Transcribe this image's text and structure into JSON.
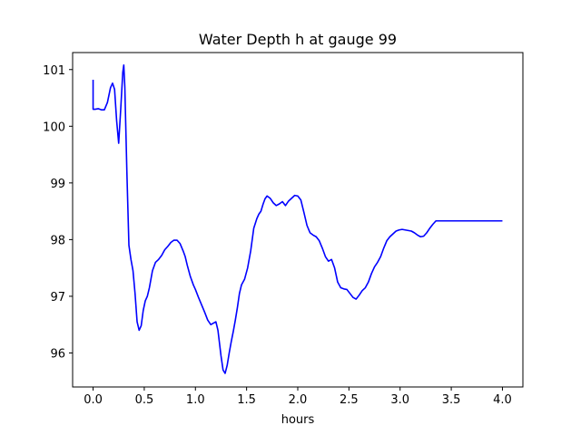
{
  "chart_data": {
    "type": "line",
    "title": "Water Depth h at gauge 99",
    "xlabel": "hours",
    "ylabel": "",
    "xlim": [
      -0.2,
      4.2
    ],
    "ylim": [
      95.4,
      101.3
    ],
    "xticks": [
      0.0,
      0.5,
      1.0,
      1.5,
      2.0,
      2.5,
      3.0,
      3.5,
      4.0
    ],
    "xtick_labels": [
      "0.0",
      "0.5",
      "1.0",
      "1.5",
      "2.0",
      "2.5",
      "3.0",
      "3.5",
      "4.0"
    ],
    "yticks": [
      96,
      97,
      98,
      99,
      100,
      101
    ],
    "ytick_labels": [
      "96",
      "97",
      "98",
      "99",
      "100",
      "101"
    ],
    "grid": false,
    "series": [
      {
        "color": "#0000ff",
        "x": [
          0.0,
          0.0,
          0.02,
          0.05,
          0.08,
          0.11,
          0.14,
          0.17,
          0.19,
          0.21,
          0.23,
          0.25,
          0.27,
          0.29,
          0.3,
          0.31,
          0.33,
          0.35,
          0.37,
          0.39,
          0.41,
          0.43,
          0.45,
          0.47,
          0.49,
          0.51,
          0.53,
          0.55,
          0.58,
          0.61,
          0.64,
          0.67,
          0.7,
          0.73,
          0.76,
          0.79,
          0.82,
          0.85,
          0.88,
          0.9,
          0.92,
          0.95,
          0.98,
          1.0,
          1.03,
          1.06,
          1.09,
          1.12,
          1.15,
          1.18,
          1.2,
          1.22,
          1.25,
          1.27,
          1.29,
          1.31,
          1.33,
          1.35,
          1.37,
          1.39,
          1.41,
          1.43,
          1.45,
          1.48,
          1.51,
          1.54,
          1.57,
          1.6,
          1.62,
          1.64,
          1.66,
          1.68,
          1.7,
          1.73,
          1.76,
          1.79,
          1.82,
          1.85,
          1.88,
          1.91,
          1.94,
          1.97,
          2.0,
          2.03,
          2.06,
          2.09,
          2.12,
          2.15,
          2.18,
          2.21,
          2.24,
          2.27,
          2.3,
          2.33,
          2.36,
          2.39,
          2.42,
          2.45,
          2.48,
          2.51,
          2.54,
          2.57,
          2.6,
          2.63,
          2.66,
          2.69,
          2.72,
          2.75,
          2.78,
          2.81,
          2.84,
          2.87,
          2.9,
          2.93,
          2.96,
          2.99,
          3.02,
          3.05,
          3.08,
          3.11,
          3.14,
          3.17,
          3.2,
          3.23,
          3.26,
          3.29,
          3.32,
          3.35,
          3.38,
          3.41,
          3.44,
          3.47,
          3.5,
          3.53,
          3.56,
          3.59,
          3.62,
          3.65,
          3.68,
          3.71,
          3.74,
          3.77,
          3.8,
          3.83,
          3.86,
          3.89,
          3.92,
          3.95,
          3.98,
          4.0
        ],
        "y": [
          100.82,
          100.3,
          100.3,
          100.31,
          100.29,
          100.29,
          100.42,
          100.68,
          100.76,
          100.65,
          100.1,
          99.7,
          100.3,
          100.95,
          101.08,
          100.7,
          99.2,
          97.9,
          97.65,
          97.45,
          97.05,
          96.55,
          96.4,
          96.48,
          96.75,
          96.92,
          97.0,
          97.15,
          97.45,
          97.6,
          97.65,
          97.72,
          97.82,
          97.88,
          97.95,
          97.99,
          97.99,
          97.93,
          97.8,
          97.7,
          97.55,
          97.35,
          97.2,
          97.12,
          96.98,
          96.85,
          96.72,
          96.58,
          96.5,
          96.53,
          96.55,
          96.4,
          95.95,
          95.7,
          95.64,
          95.78,
          96.0,
          96.2,
          96.38,
          96.58,
          96.8,
          97.05,
          97.2,
          97.3,
          97.5,
          97.8,
          98.2,
          98.37,
          98.45,
          98.5,
          98.62,
          98.72,
          98.77,
          98.73,
          98.65,
          98.6,
          98.63,
          98.67,
          98.6,
          98.68,
          98.73,
          98.78,
          98.77,
          98.7,
          98.48,
          98.25,
          98.12,
          98.08,
          98.05,
          97.98,
          97.85,
          97.7,
          97.62,
          97.65,
          97.5,
          97.25,
          97.15,
          97.13,
          97.12,
          97.05,
          96.98,
          96.95,
          97.02,
          97.1,
          97.15,
          97.25,
          97.4,
          97.52,
          97.6,
          97.7,
          97.85,
          97.98,
          98.05,
          98.1,
          98.15,
          98.17,
          98.18,
          98.17,
          98.16,
          98.15,
          98.12,
          98.08,
          98.05,
          98.06,
          98.12,
          98.2,
          98.27,
          98.33,
          98.33,
          98.33,
          98.33,
          98.33,
          98.33,
          98.33,
          98.33,
          98.33,
          98.33,
          98.33,
          98.33,
          98.33,
          98.33,
          98.33,
          98.33,
          98.33,
          98.33,
          98.33,
          98.33,
          98.33,
          98.33,
          98.33
        ]
      }
    ]
  }
}
